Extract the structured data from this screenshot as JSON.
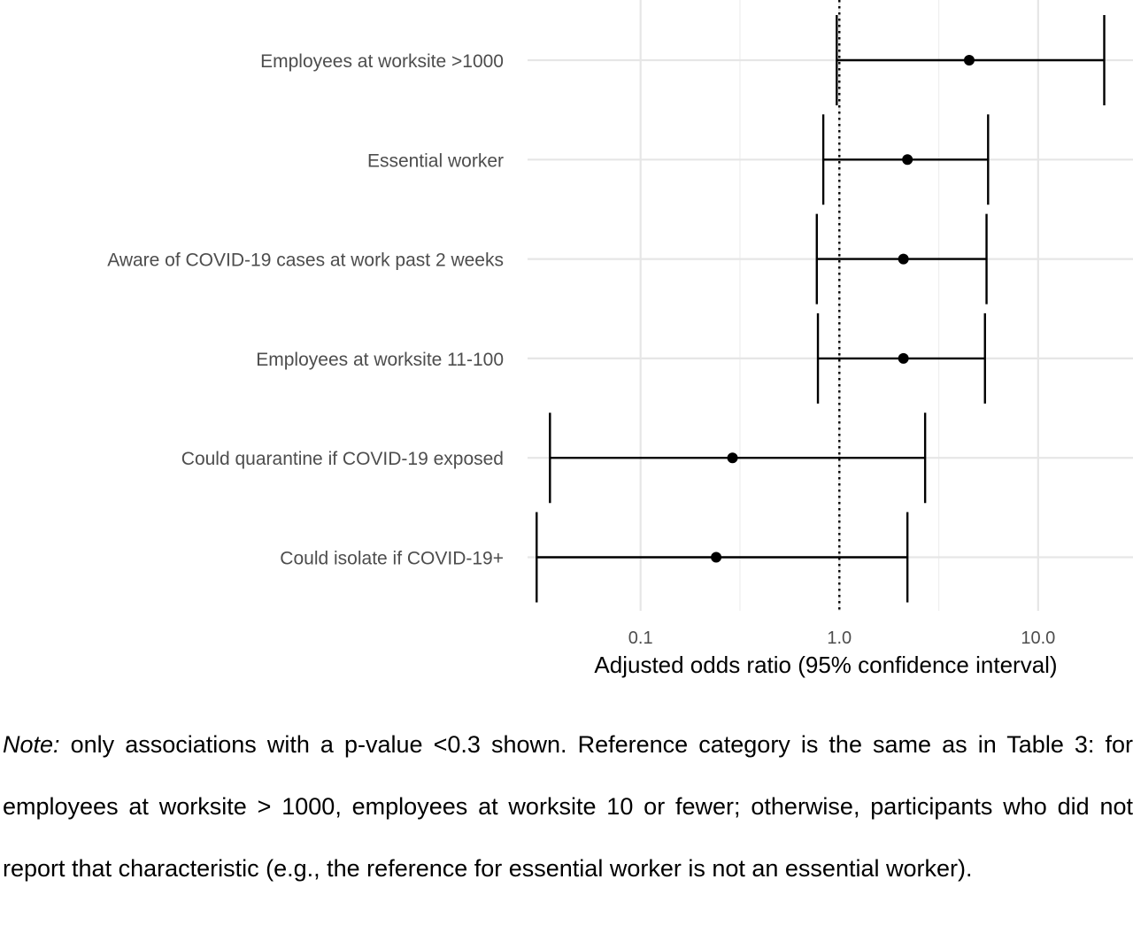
{
  "chart_data": {
    "type": "forest",
    "xlabel": "Adjusted odds ratio (95% confidence interval)",
    "x_scale": "log10",
    "xlim": [
      0.027,
      30
    ],
    "x_ticks": [
      {
        "value": 0.1,
        "label": "0.1"
      },
      {
        "value": 1.0,
        "label": "1.0"
      },
      {
        "value": 10.0,
        "label": "10.0"
      }
    ],
    "reference_line": 1.0,
    "grid": true,
    "rows": [
      {
        "label": "Employees at worksite >1000",
        "estimate": 4.5,
        "ci_low": 0.97,
        "ci_high": 21.5
      },
      {
        "label": "Essential worker",
        "estimate": 2.2,
        "ci_low": 0.83,
        "ci_high": 5.6
      },
      {
        "label": "Aware of COVID-19 cases at work past 2 weeks",
        "estimate": 2.1,
        "ci_low": 0.77,
        "ci_high": 5.5
      },
      {
        "label": "Employees at worksite 11-100",
        "estimate": 2.1,
        "ci_low": 0.78,
        "ci_high": 5.4
      },
      {
        "label": "Could quarantine if COVID-19 exposed",
        "estimate": 0.29,
        "ci_low": 0.035,
        "ci_high": 2.7
      },
      {
        "label": "Could isolate if COVID-19+",
        "estimate": 0.24,
        "ci_low": 0.03,
        "ci_high": 2.2
      }
    ]
  },
  "note": {
    "lead": "Note:",
    "text": " only associations with a p-value <0.3 shown. Reference category is the same as in Table 3: for employees at worksite > 1000, employees at worksite 10 or fewer; otherwise, participants who did not report that characteristic (e.g., the reference for essential worker is not an essential worker)."
  }
}
